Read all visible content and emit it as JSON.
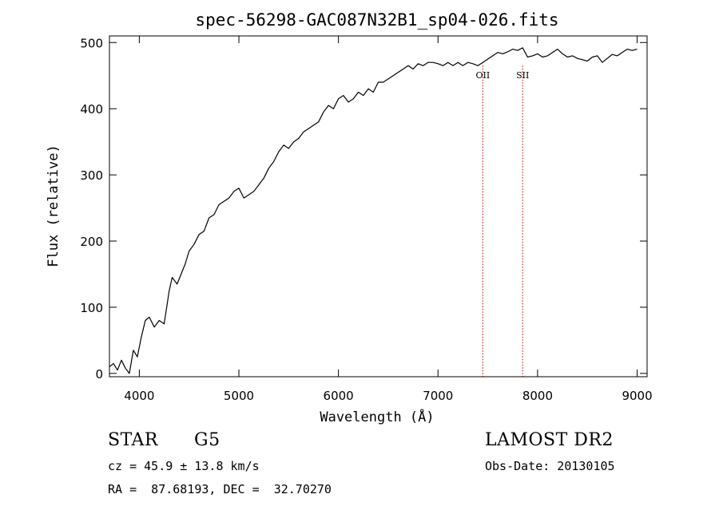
{
  "chart_data": {
    "type": "line",
    "title": "spec-56298-GAC087N32B1_sp04-026.fits",
    "xlabel": "Wavelength (Å)",
    "ylabel": "Flux (relative)",
    "xlim": [
      3700,
      9100
    ],
    "ylim": [
      -5,
      510
    ],
    "xticks": [
      4000,
      5000,
      6000,
      7000,
      8000,
      9000
    ],
    "yticks": [
      0,
      100,
      200,
      300,
      400,
      500
    ],
    "grid": false,
    "series": [
      {
        "color": "#000000",
        "x": [
          3700,
          3740,
          3780,
          3820,
          3860,
          3900,
          3940,
          3980,
          4020,
          4060,
          4100,
          4150,
          4200,
          4250,
          4300,
          4330,
          4380,
          4420,
          4460,
          4500,
          4550,
          4600,
          4650,
          4700,
          4750,
          4800,
          4850,
          4900,
          4950,
          5000,
          5050,
          5100,
          5150,
          5200,
          5250,
          5300,
          5350,
          5400,
          5450,
          5500,
          5550,
          5600,
          5650,
          5700,
          5750,
          5800,
          5850,
          5900,
          5950,
          6000,
          6050,
          6100,
          6150,
          6200,
          6250,
          6300,
          6350,
          6400,
          6450,
          6500,
          6550,
          6600,
          6650,
          6700,
          6750,
          6800,
          6850,
          6900,
          6950,
          7000,
          7050,
          7100,
          7150,
          7200,
          7250,
          7300,
          7350,
          7400,
          7450,
          7500,
          7550,
          7600,
          7650,
          7700,
          7750,
          7800,
          7850,
          7900,
          7950,
          8000,
          8050,
          8100,
          8150,
          8200,
          8250,
          8300,
          8350,
          8400,
          8450,
          8500,
          8550,
          8600,
          8650,
          8700,
          8750,
          8800,
          8850,
          8900,
          8950,
          9000
        ],
        "y": [
          10,
          15,
          5,
          20,
          8,
          0,
          35,
          25,
          55,
          80,
          85,
          70,
          80,
          75,
          125,
          145,
          135,
          150,
          165,
          185,
          195,
          210,
          215,
          235,
          240,
          255,
          260,
          265,
          275,
          280,
          265,
          270,
          275,
          285,
          295,
          310,
          320,
          335,
          345,
          340,
          350,
          355,
          365,
          370,
          375,
          380,
          395,
          405,
          400,
          415,
          420,
          410,
          415,
          425,
          420,
          430,
          425,
          440,
          440,
          445,
          450,
          455,
          460,
          465,
          460,
          468,
          465,
          470,
          470,
          468,
          465,
          470,
          465,
          470,
          465,
          470,
          468,
          465,
          470,
          475,
          480,
          485,
          483,
          486,
          490,
          488,
          492,
          478,
          480,
          483,
          478,
          480,
          485,
          490,
          483,
          478,
          480,
          476,
          474,
          472,
          478,
          480,
          470,
          476,
          482,
          480,
          485,
          490,
          488,
          490
        ]
      }
    ],
    "annotations": [
      {
        "text": "OII",
        "x": 7450
      },
      {
        "text": "SII",
        "x": 7850
      }
    ],
    "annotation_line_color": "#c00000"
  },
  "footer": {
    "class_label": "STAR",
    "subclass_label": "G5",
    "survey": "LAMOST DR2",
    "redshift": "cz = 45.9 ± 13.8 km/s",
    "obs_date": "Obs-Date: 20130105",
    "coords": "RA =  87.68193, DEC =  32.70270"
  }
}
